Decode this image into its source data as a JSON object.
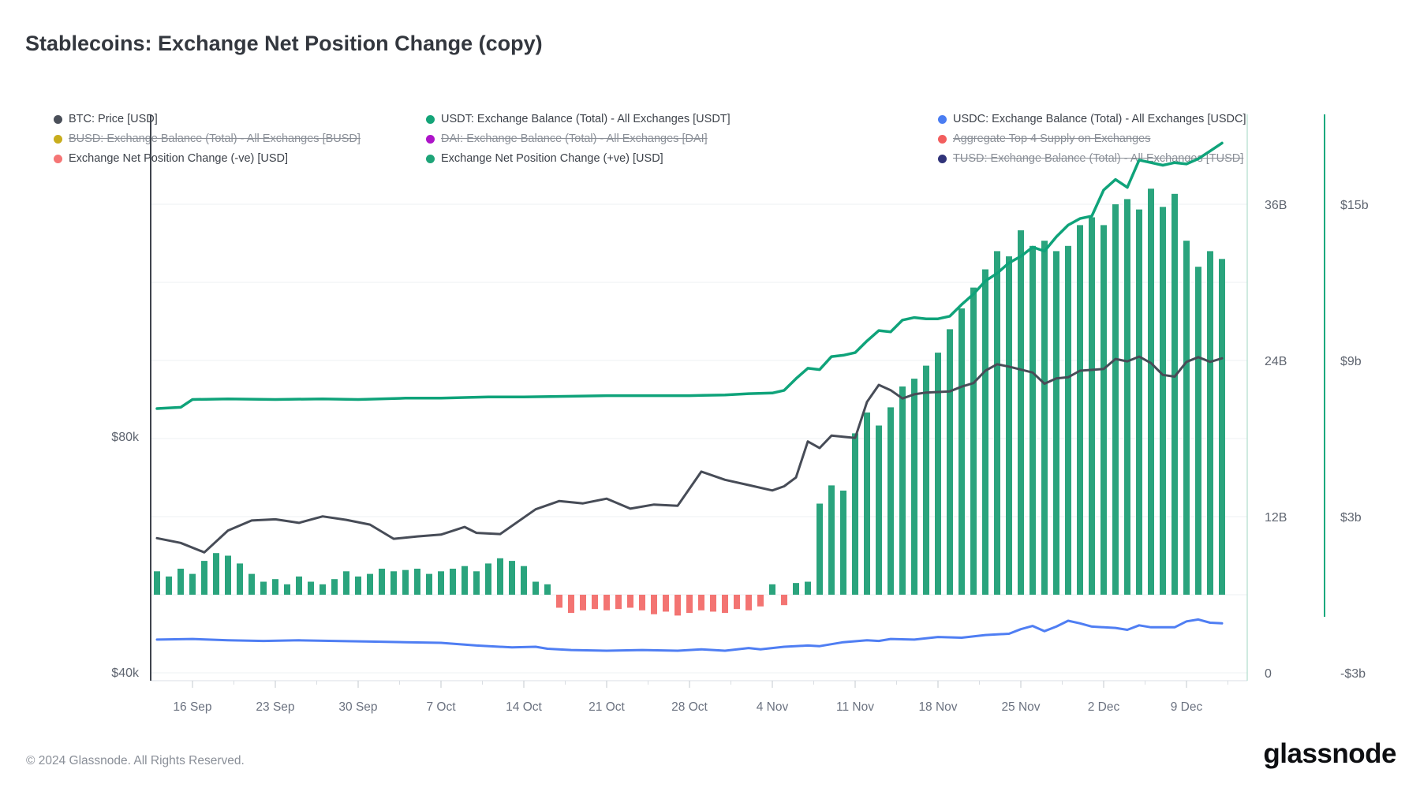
{
  "header": {
    "title": "Stablecoins: Exchange Net Position Change (copy)"
  },
  "legend": {
    "rows": [
      [
        {
          "label": "BTC: Price [USD]",
          "color": "#4a4f59",
          "struck": false
        },
        {
          "label": "USDT: Exchange Balance (Total) - All Exchanges [USDT]",
          "color": "#14a478",
          "struck": false
        },
        {
          "label": "USDC: Exchange Balance (Total) - All Exchanges [USDC]",
          "color": "#4a7df2",
          "struck": false
        }
      ],
      [
        {
          "label": "BUSD: Exchange Balance (Total) - All Exchanges [BUSD]",
          "color": "#c8ad1d",
          "struck": true
        },
        {
          "label": "DAI: Exchange Balance (Total) - All Exchanges [DAI]",
          "color": "#ad14c9",
          "struck": true
        },
        {
          "label": "Aggregate Top 4 Supply on Exchanges",
          "color": "#f25e5e",
          "struck": true
        }
      ],
      [
        {
          "label": "Exchange Net Position Change (-ve) [USD]",
          "color": "#f57575",
          "struck": false
        },
        {
          "label": "Exchange Net Position Change (+ve) [USD]",
          "color": "#1ea478",
          "struck": false
        },
        {
          "label": "TUSD: Exchange Balance (Total) - All Exchanges [TUSD]",
          "color": "#303379",
          "struck": true
        }
      ]
    ]
  },
  "footer": {
    "copyright": "© 2024 Glassnode. All Rights Reserved.",
    "brand": "glassnode"
  },
  "colors": {
    "bar_positive": "#2aa47d",
    "bar_negative": "#f37472",
    "line_usdt": "#0fa37a",
    "line_usdc": "#4f7ef3",
    "line_btc": "#474c57",
    "grid": "#eef0f3",
    "spine_left": "#3f444d",
    "border_bottom": "#e7eaee",
    "axis_green_light": "#bfe3d6",
    "axis_green": "#19a97e",
    "tick_mark": "#c3c8cf",
    "tick_mark_minor": "#d9dde2"
  },
  "chart_data": {
    "type": "mixed",
    "title": "Stablecoins: Exchange Net Position Change (copy)",
    "x_axis": {
      "granularity": "daily",
      "start_date": "13 Sep 2024",
      "tick_labels": [
        "16 Sep",
        "23 Sep",
        "30 Sep",
        "7 Oct",
        "14 Oct",
        "21 Oct",
        "28 Oct",
        "4 Nov",
        "11 Nov",
        "18 Nov",
        "25 Nov",
        "2 Dec",
        "9 Dec"
      ],
      "first_tick_day_index": 3,
      "tick_interval_days": 7
    },
    "axes": {
      "left_btc_usd": {
        "unit": "USD",
        "ticks": [
          {
            "label": "$80k",
            "value": 80
          },
          {
            "label": "$40k",
            "value": 40
          }
        ]
      },
      "right_balance": {
        "unit": "billions",
        "ticks": [
          {
            "label": "36B",
            "value": 36
          },
          {
            "label": "24B",
            "value": 24
          },
          {
            "label": "12B",
            "value": 12
          },
          {
            "label": "0",
            "value": 0
          }
        ]
      },
      "right_netflow": {
        "unit": "USD billions",
        "ticks": [
          {
            "label": "$15b",
            "value": 15
          },
          {
            "label": "$9b",
            "value": 9
          },
          {
            "label": "$3b",
            "value": 3
          },
          {
            "label": "-$3b",
            "value": -3
          }
        ]
      }
    },
    "series": [
      {
        "name": "Exchange Net Position Change (+ve/-ve) [USD]",
        "type": "bar",
        "axis": "right_netflow",
        "unit": "USD billions (daily)",
        "values": [
          0.9,
          0.7,
          1.0,
          0.8,
          1.3,
          1.6,
          1.5,
          1.2,
          0.8,
          0.5,
          0.6,
          0.4,
          0.7,
          0.5,
          0.4,
          0.6,
          0.9,
          0.7,
          0.8,
          1.0,
          0.9,
          0.95,
          1.0,
          0.8,
          0.9,
          1.0,
          1.1,
          0.9,
          1.2,
          1.4,
          1.3,
          1.1,
          0.5,
          0.4,
          -0.5,
          -0.7,
          -0.6,
          -0.55,
          -0.6,
          -0.55,
          -0.5,
          -0.6,
          -0.75,
          -0.65,
          -0.8,
          -0.7,
          -0.6,
          -0.65,
          -0.7,
          -0.55,
          -0.6,
          -0.45,
          0.4,
          -0.4,
          0.45,
          0.5,
          3.5,
          4.2,
          4.0,
          6.2,
          7.0,
          6.5,
          7.2,
          8.0,
          8.3,
          8.8,
          9.3,
          10.2,
          11.0,
          11.8,
          12.5,
          13.2,
          13.0,
          14.0,
          13.4,
          13.6,
          13.2,
          13.4,
          14.2,
          14.5,
          14.2,
          15.0,
          15.2,
          14.8,
          15.6,
          14.9,
          15.4,
          13.6,
          12.6,
          13.2,
          12.9
        ]
      },
      {
        "name": "BTC: Price [USD]",
        "type": "line",
        "axis": "left_btc_usd",
        "unit": "USD thousands",
        "points": [
          [
            0,
            62.7
          ],
          [
            2,
            61.9
          ],
          [
            4,
            60.3
          ],
          [
            6,
            64.0
          ],
          [
            8,
            65.7
          ],
          [
            10,
            65.9
          ],
          [
            12,
            65.3
          ],
          [
            14,
            66.4
          ],
          [
            16,
            65.8
          ],
          [
            18,
            65.0
          ],
          [
            20,
            62.6
          ],
          [
            22,
            63.0
          ],
          [
            24,
            63.3
          ],
          [
            26,
            64.6
          ],
          [
            27,
            63.6
          ],
          [
            29,
            63.4
          ],
          [
            32,
            67.6
          ],
          [
            34,
            69.0
          ],
          [
            36,
            68.6
          ],
          [
            38,
            69.4
          ],
          [
            40,
            67.7
          ],
          [
            42,
            68.4
          ],
          [
            44,
            68.2
          ],
          [
            46,
            74.0
          ],
          [
            48,
            72.6
          ],
          [
            50,
            71.7
          ],
          [
            52,
            70.8
          ],
          [
            53,
            71.5
          ],
          [
            54,
            73.0
          ],
          [
            55,
            79.1
          ],
          [
            56,
            78.0
          ],
          [
            57,
            80.1
          ],
          [
            59,
            79.7
          ],
          [
            60,
            85.8
          ],
          [
            61,
            88.7
          ],
          [
            62,
            87.8
          ],
          [
            63,
            86.4
          ],
          [
            64,
            87.1
          ],
          [
            65,
            87.4
          ],
          [
            67,
            87.6
          ],
          [
            68,
            88.4
          ],
          [
            69,
            89.0
          ],
          [
            70,
            91.1
          ],
          [
            71,
            92.2
          ],
          [
            72,
            91.8
          ],
          [
            74,
            90.8
          ],
          [
            75,
            88.9
          ],
          [
            76,
            89.8
          ],
          [
            77,
            90.0
          ],
          [
            78,
            91.1
          ],
          [
            80,
            91.4
          ],
          [
            81,
            93.1
          ],
          [
            82,
            92.7
          ],
          [
            83,
            93.5
          ],
          [
            84,
            92.4
          ],
          [
            85,
            90.4
          ],
          [
            86,
            90.1
          ],
          [
            87,
            92.6
          ],
          [
            88,
            93.4
          ],
          [
            89,
            92.6
          ],
          [
            90,
            93.2
          ]
        ]
      },
      {
        "name": "USDT: Exchange Balance (Total) - All Exchanges [USDT]",
        "type": "line",
        "axis": "right_balance",
        "unit": "billions",
        "points": [
          [
            0,
            20.3
          ],
          [
            2,
            20.4
          ],
          [
            3,
            21.0
          ],
          [
            6,
            21.05
          ],
          [
            10,
            21.0
          ],
          [
            14,
            21.05
          ],
          [
            17,
            21.0
          ],
          [
            21,
            21.1
          ],
          [
            24,
            21.1
          ],
          [
            28,
            21.2
          ],
          [
            31,
            21.2
          ],
          [
            35,
            21.25
          ],
          [
            38,
            21.3
          ],
          [
            42,
            21.3
          ],
          [
            45,
            21.3
          ],
          [
            48,
            21.35
          ],
          [
            50,
            21.45
          ],
          [
            52,
            21.5
          ],
          [
            53,
            21.7
          ],
          [
            54,
            22.6
          ],
          [
            55,
            23.4
          ],
          [
            56,
            23.3
          ],
          [
            57,
            24.3
          ],
          [
            58,
            24.4
          ],
          [
            59,
            24.6
          ],
          [
            60,
            25.5
          ],
          [
            61,
            26.3
          ],
          [
            62,
            26.2
          ],
          [
            63,
            27.1
          ],
          [
            64,
            27.3
          ],
          [
            65,
            27.2
          ],
          [
            66,
            27.2
          ],
          [
            67,
            27.4
          ],
          [
            68,
            28.3
          ],
          [
            69,
            29.1
          ],
          [
            70,
            30.1
          ],
          [
            71,
            30.7
          ],
          [
            72,
            31.5
          ],
          [
            73,
            32.0
          ],
          [
            74,
            32.7
          ],
          [
            75,
            32.4
          ],
          [
            76,
            33.5
          ],
          [
            77,
            34.4
          ],
          [
            78,
            34.9
          ],
          [
            79,
            35.1
          ],
          [
            80,
            37.1
          ],
          [
            81,
            37.9
          ],
          [
            82,
            37.3
          ],
          [
            83,
            39.4
          ],
          [
            84,
            39.2
          ],
          [
            85,
            39.0
          ],
          [
            86,
            39.2
          ],
          [
            87,
            39.1
          ],
          [
            88,
            39.5
          ],
          [
            89,
            40.1
          ],
          [
            90,
            40.7
          ]
        ]
      },
      {
        "name": "USDC: Exchange Balance (Total) - All Exchanges [USDC]",
        "type": "line",
        "axis": "right_balance",
        "unit": "billions",
        "points": [
          [
            0,
            2.55
          ],
          [
            3,
            2.6
          ],
          [
            6,
            2.5
          ],
          [
            9,
            2.45
          ],
          [
            12,
            2.5
          ],
          [
            15,
            2.45
          ],
          [
            18,
            2.4
          ],
          [
            21,
            2.35
          ],
          [
            24,
            2.3
          ],
          [
            27,
            2.1
          ],
          [
            30,
            1.95
          ],
          [
            32,
            2.0
          ],
          [
            33,
            1.85
          ],
          [
            35,
            1.75
          ],
          [
            38,
            1.7
          ],
          [
            41,
            1.75
          ],
          [
            44,
            1.7
          ],
          [
            46,
            1.8
          ],
          [
            48,
            1.7
          ],
          [
            50,
            1.9
          ],
          [
            51,
            1.8
          ],
          [
            53,
            2.0
          ],
          [
            55,
            2.1
          ],
          [
            56,
            2.05
          ],
          [
            57,
            2.2
          ],
          [
            58,
            2.35
          ],
          [
            60,
            2.5
          ],
          [
            61,
            2.45
          ],
          [
            62,
            2.6
          ],
          [
            64,
            2.55
          ],
          [
            66,
            2.75
          ],
          [
            68,
            2.7
          ],
          [
            70,
            2.9
          ],
          [
            72,
            3.0
          ],
          [
            73,
            3.35
          ],
          [
            74,
            3.6
          ],
          [
            75,
            3.2
          ],
          [
            76,
            3.55
          ],
          [
            77,
            4.0
          ],
          [
            78,
            3.8
          ],
          [
            79,
            3.55
          ],
          [
            81,
            3.45
          ],
          [
            82,
            3.3
          ],
          [
            83,
            3.65
          ],
          [
            84,
            3.5
          ],
          [
            86,
            3.5
          ],
          [
            87,
            3.95
          ],
          [
            88,
            4.1
          ],
          [
            89,
            3.85
          ],
          [
            90,
            3.8
          ]
        ]
      }
    ]
  }
}
